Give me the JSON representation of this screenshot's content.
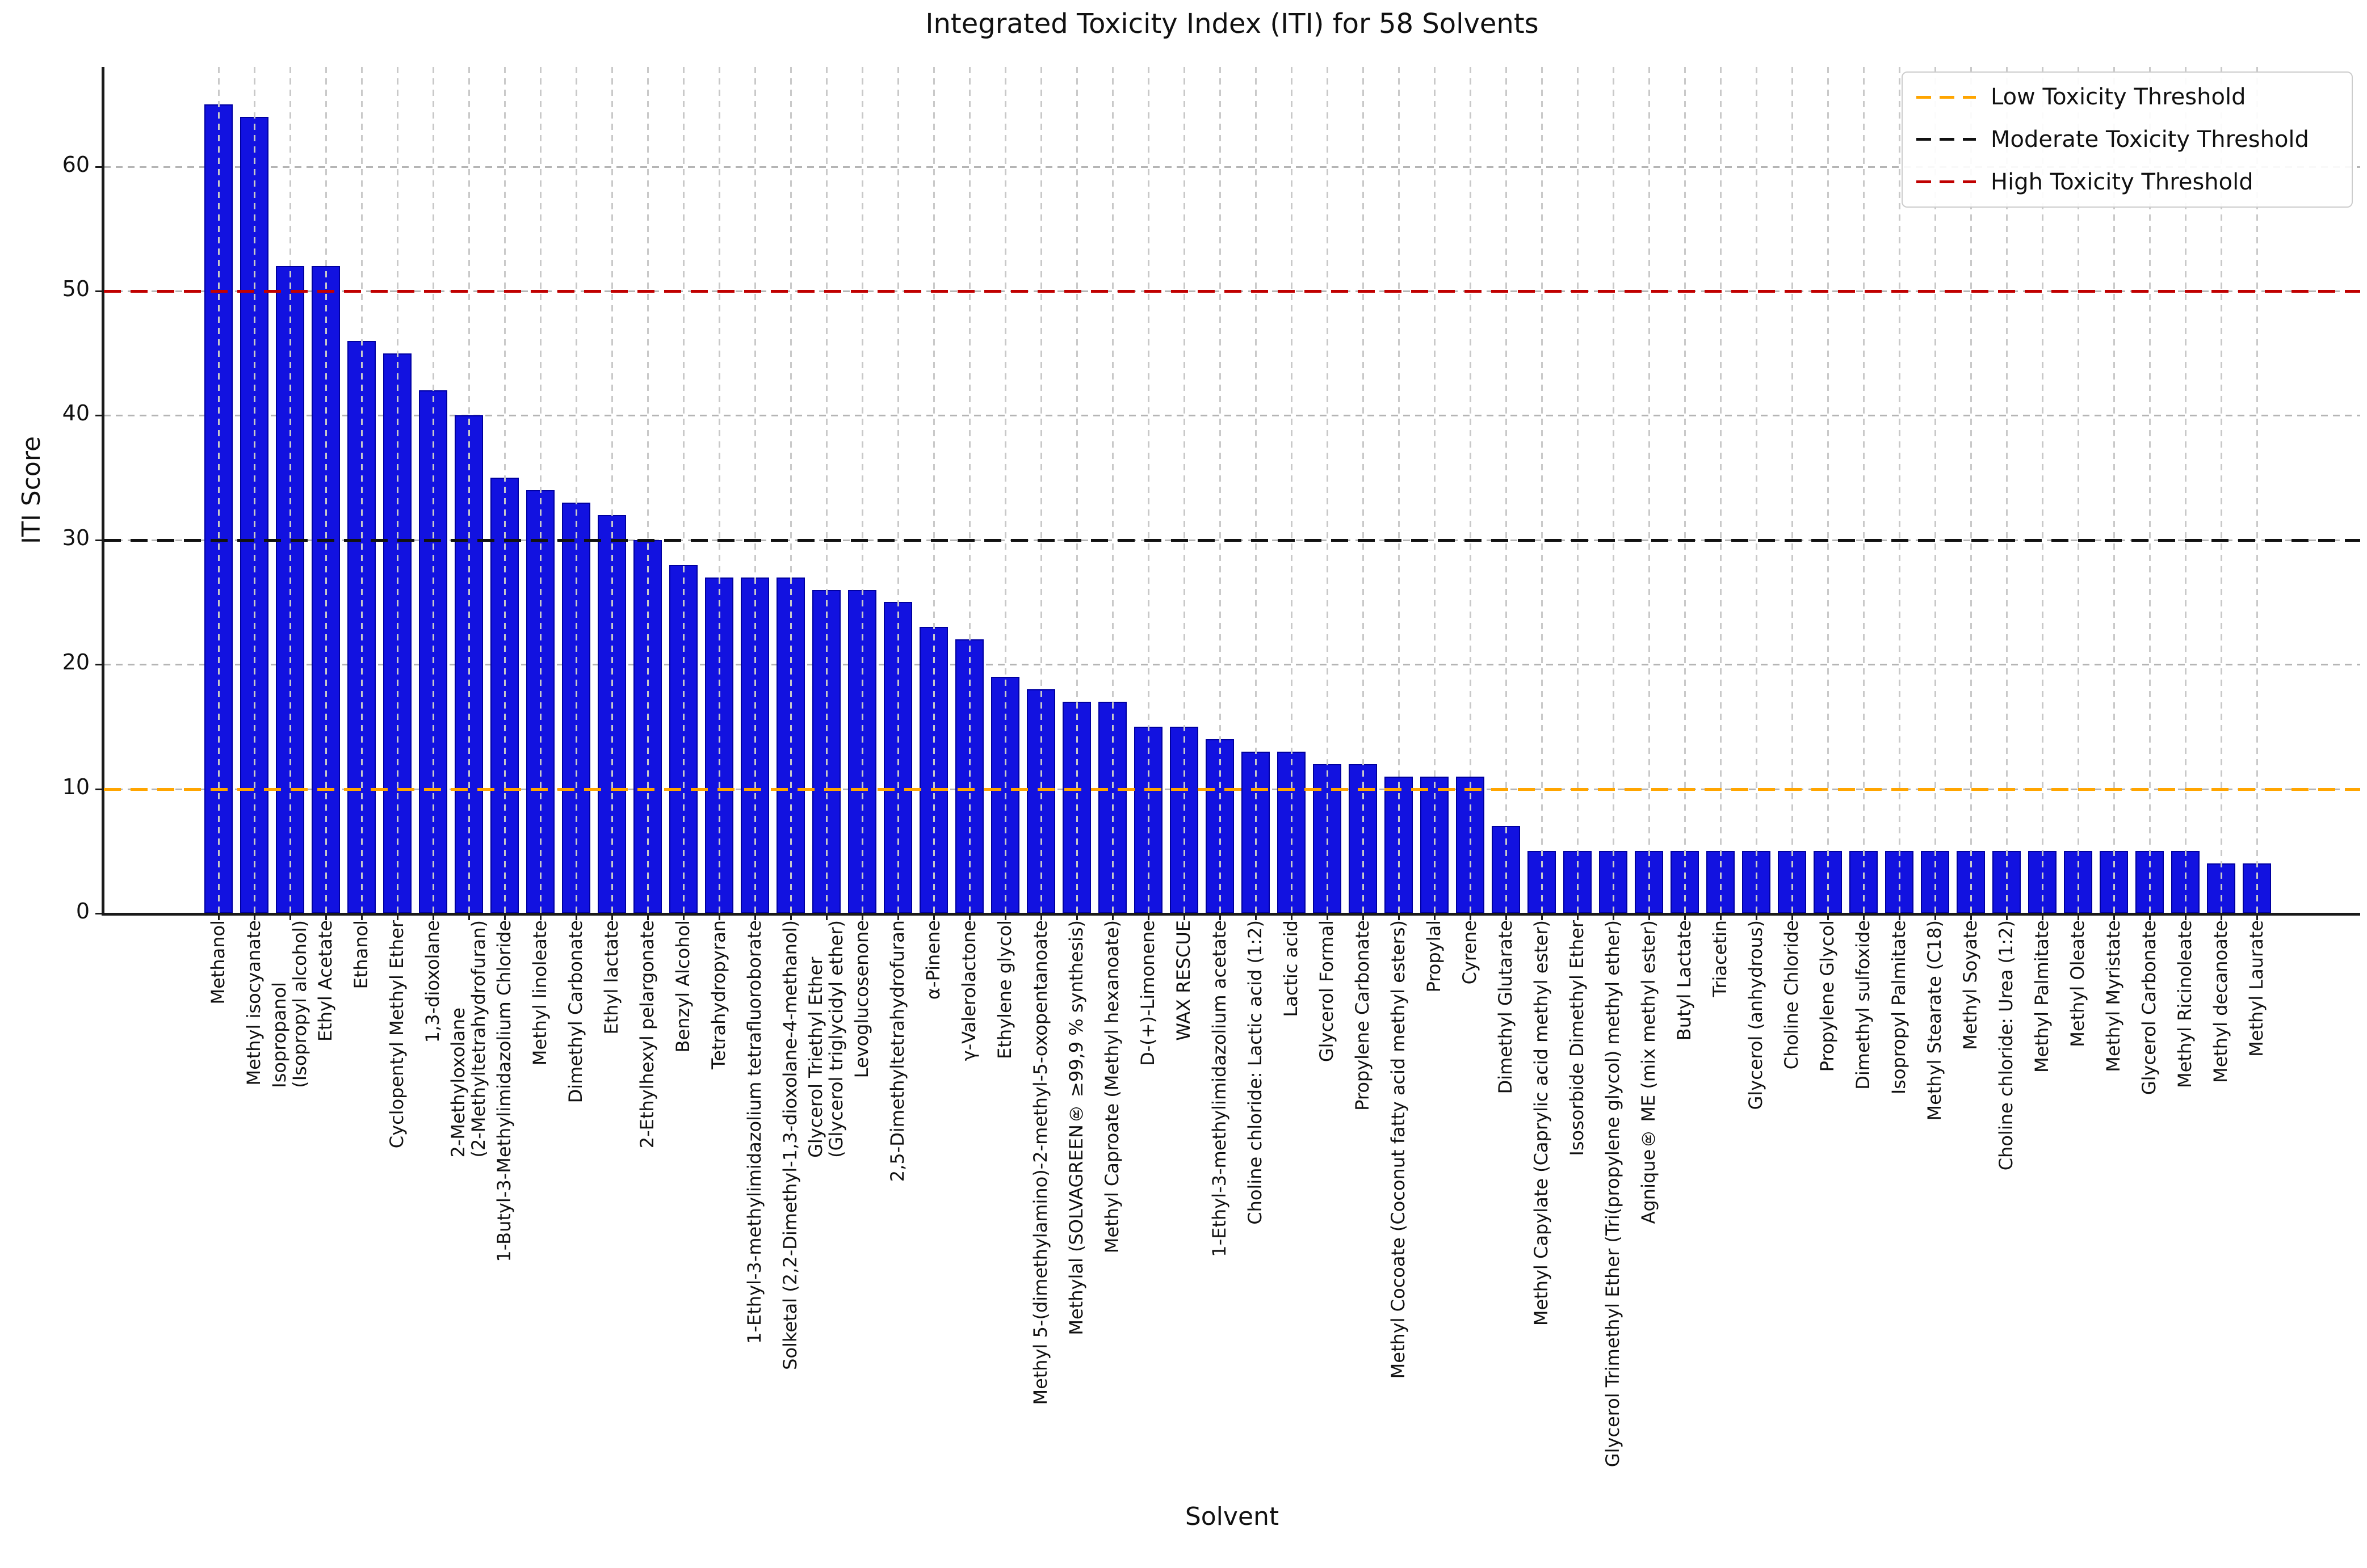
{
  "title": "Integrated Toxicity Index (ITI) for 58 Solvents",
  "axes": {
    "ylabel": "ITI Score",
    "xlabel": "Solvent",
    "yticks": [
      0,
      10,
      20,
      30,
      40,
      50,
      60
    ]
  },
  "legend": [
    {
      "label": "Low Toxicity Threshold",
      "color": "#FFA500"
    },
    {
      "label": "Moderate Toxicity Threshold",
      "color": "#111111"
    },
    {
      "label": "High Toxicity Threshold",
      "color": "#C00000"
    }
  ],
  "thresholds": [
    {
      "name": "low",
      "value": 10,
      "color": "#FFA500"
    },
    {
      "name": "moderate",
      "value": 30,
      "color": "#111111"
    },
    {
      "name": "high",
      "value": 50,
      "color": "#C00000"
    }
  ],
  "chart_data": {
    "type": "bar",
    "title": "Integrated Toxicity Index (ITI) for 58 Solvents",
    "xlabel": "Solvent",
    "ylabel": "ITI Score",
    "ylim": [
      0,
      68
    ],
    "bar_color": "#1212e0",
    "bar_edge_color": "#0000a0",
    "grid": true,
    "legend_position": "upper right",
    "categories": [
      "Methanol",
      "Methyl isocyanate",
      "Isopropanol\n(Isopropyl alcohol)",
      "Ethyl Acetate",
      "Ethanol",
      "Cyclopentyl Methyl Ether",
      "1,3-dioxolane",
      "2-Methyloxolane\n(2-Methyltetrahydrofuran)",
      "1-Butyl-3-Methylimidazolium Chloride",
      "Methyl linoleate",
      "Dimethyl Carbonate",
      "Ethyl lactate",
      "2-Ethylhexyl pelargonate",
      "Benzyl Alcohol",
      "Tetrahydropyran",
      "1-Ethyl-3-methylimidazolium tetrafluoroborate",
      "Solketal (2,2-Dimethyl-1,3-dioxolane-4-methanol)",
      "Glycerol Triethyl Ether\n(Glycerol triglycidyl ether)",
      "Levoglucosenone",
      "2,5-Dimethyltetrahydrofuran",
      "α-Pinene",
      "γ-Valerolactone",
      "Ethylene glycol",
      "Methyl 5-(dimethylamino)-2-methyl-5-oxopentanoate",
      "Methylal (SOLVAGREEN® ≥99,9 % synthesis)",
      "Methyl Caproate (Methyl hexanoate)",
      "D-(+)-Limonene",
      "WAX RESCUE",
      "1-Ethyl-3-methylimidazolium acetate",
      "Choline chloride: Lactic acid (1:2)",
      "Lactic acid",
      "Glycerol Formal",
      "Propylene Carbonate",
      "Methyl Cocoate (Coconut fatty acid methyl esters)",
      "Propylal",
      "Cyrene",
      "Dimethyl Glutarate",
      "Methyl Capylate (Caprylic acid methyl ester)",
      "Isosorbide Dimethyl Ether",
      "Glycerol Trimethyl Ether (Tri(propylene glycol) methyl ether)",
      "Agnique® ME (mix methyl ester)",
      "Butyl Lactate",
      "Triacetin",
      "Glycerol (anhydrous)",
      "Choline Chloride",
      "Propylene Glycol",
      "Dimethyl sulfoxide",
      "Isopropyl Palmitate",
      "Methyl Stearate (C18)",
      "Methyl Soyate",
      "Choline chloride: Urea (1:2)",
      "Methyl Palmitate",
      "Methyl Oleate",
      "Methyl Myristate",
      "Glycerol Carbonate",
      "Methyl Ricinoleate",
      "Methyl decanoate",
      "Methyl Laurate"
    ],
    "values": [
      65,
      64,
      52,
      52,
      46,
      45,
      42,
      40,
      35,
      34,
      33,
      32,
      30,
      28,
      27,
      27,
      27,
      26,
      26,
      25,
      23,
      22,
      19,
      18,
      17,
      17,
      15,
      15,
      14,
      13,
      13,
      12,
      12,
      11,
      11,
      11,
      7,
      5,
      5,
      5,
      5,
      5,
      5,
      5,
      5,
      5,
      5,
      5,
      5,
      5,
      5,
      5,
      5,
      5,
      5,
      5,
      4,
      4
    ]
  }
}
